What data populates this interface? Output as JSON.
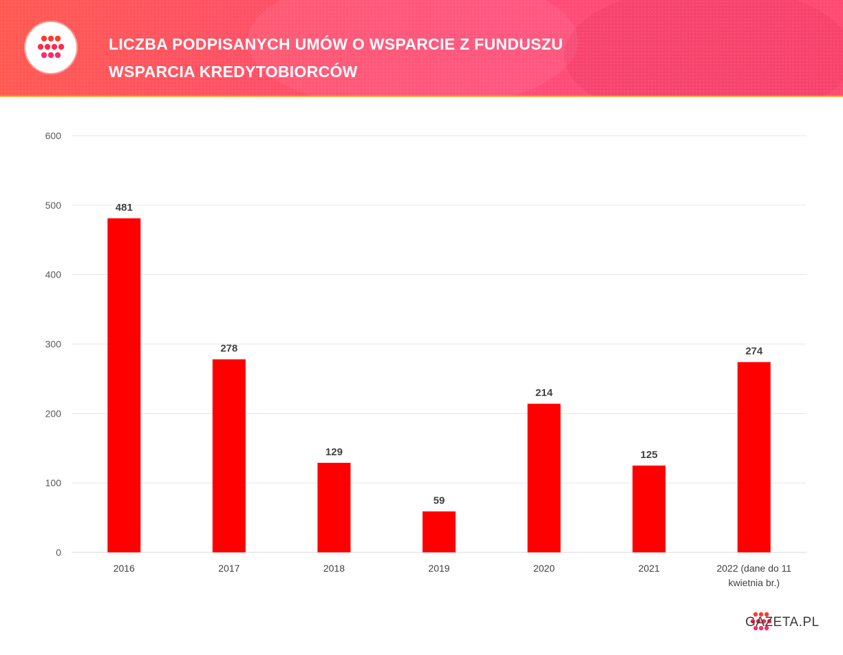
{
  "header": {
    "title_line1": "LICZBA PODPISANYCH UMÓW O WSPARCIE Z FUNDUSZU",
    "title_line2": "WSPARCIA KREDYTOBIORCÓW",
    "accent_color": "#ff4f6a"
  },
  "brand": {
    "name": "GAZETA.PL",
    "logo_icon": "gazeta-dots-logo-icon"
  },
  "chart_data": {
    "type": "bar",
    "title": "LICZBA PODPISANYCH UMÓW O WSPARCIE Z FUNDUSZU WSPARCIA KREDYTOBIORCÓW",
    "xlabel": "",
    "ylabel": "",
    "categories": [
      "2016",
      "2017",
      "2018",
      "2019",
      "2020",
      "2021",
      "2022 (dane do 11 kwietnia br.)"
    ],
    "category_lines": [
      [
        "2016"
      ],
      [
        "2017"
      ],
      [
        "2018"
      ],
      [
        "2019"
      ],
      [
        "2020"
      ],
      [
        "2021"
      ],
      [
        "2022 (dane do 11",
        "kwietnia br.)"
      ]
    ],
    "values": [
      481,
      278,
      129,
      59,
      214,
      125,
      274
    ],
    "data_labels": [
      "481",
      "278",
      "129",
      "59",
      "214",
      "125",
      "274"
    ],
    "ylim": [
      0,
      600
    ],
    "yticks": [
      0,
      100,
      200,
      300,
      400,
      500,
      600
    ],
    "ytick_labels": [
      "0",
      "100",
      "200",
      "300",
      "400",
      "500",
      "600"
    ],
    "grid": true,
    "legend": "none",
    "bar_color": "#ff0000"
  }
}
